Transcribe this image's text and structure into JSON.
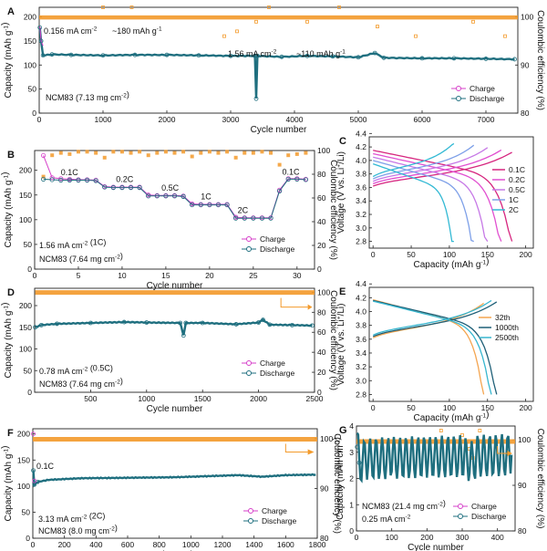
{
  "colors": {
    "charge": "#d63fc9",
    "discharge": "#1f6f7f",
    "ce": "#f39a2b",
    "c01": "#d6267f",
    "c02": "#e14fd0",
    "c05": "#c678e6",
    "c1": "#7ea0e8",
    "c2": "#33b9d4",
    "n32": "#f4a550",
    "n1000": "#1e5f77",
    "n2500": "#37b6cf"
  },
  "chart_data": [
    {
      "id": "A",
      "type": "scatter",
      "xlabel": "Cycle number",
      "ylabel": "Capacity (mAh g-1)",
      "y2label": "Coulombic efficiency (%)",
      "xlim": [
        0,
        7500
      ],
      "ylim": [
        0,
        220
      ],
      "y2lim": [
        80,
        102
      ],
      "xticks": [
        0,
        1000,
        2000,
        3000,
        4000,
        5000,
        6000,
        7000
      ],
      "yticks": [
        0,
        50,
        100,
        150,
        200
      ],
      "y2ticks": [
        80,
        90,
        100
      ],
      "series": [
        {
          "name": "Charge",
          "points": [
            [
              10,
              180
            ],
            [
              30,
              150
            ],
            [
              60,
              140
            ],
            [
              200,
              122
            ],
            [
              500,
              121
            ],
            [
              1000,
              120
            ],
            [
              1500,
              121
            ],
            [
              2000,
              121
            ],
            [
              2500,
              120
            ],
            [
              3000,
              119
            ],
            [
              3400,
              119
            ],
            [
              3800,
              117
            ],
            [
              4200,
              119
            ],
            [
              4600,
              118
            ],
            [
              5000,
              116
            ],
            [
              5260,
              125
            ],
            [
              5400,
              115
            ],
            [
              6000,
              114
            ],
            [
              6500,
              114
            ],
            [
              7000,
              113
            ],
            [
              7450,
              112
            ]
          ]
        },
        {
          "name": "Discharge",
          "points": [
            [
              10,
              178
            ],
            [
              30,
              150
            ],
            [
              60,
              120
            ],
            [
              200,
              122
            ],
            [
              500,
              121
            ],
            [
              1000,
              120
            ],
            [
              1500,
              121
            ],
            [
              2000,
              121
            ],
            [
              2500,
              120
            ],
            [
              3000,
              119
            ],
            [
              3380,
              119
            ],
            [
              3400,
              30
            ],
            [
              3420,
              119
            ],
            [
              3800,
              117
            ],
            [
              4200,
              119
            ],
            [
              4600,
              118
            ],
            [
              5000,
              116
            ],
            [
              5260,
              125
            ],
            [
              5400,
              115
            ],
            [
              6000,
              114
            ],
            [
              6500,
              114
            ],
            [
              7000,
              113
            ],
            [
              7450,
              112
            ]
          ]
        }
      ],
      "ce": {
        "level": 99.9,
        "outliers": [
          [
            1000,
            102
          ],
          [
            1450,
            102
          ],
          [
            2900,
            96
          ],
          [
            3100,
            97
          ],
          [
            3400,
            99
          ],
          [
            3600,
            102
          ],
          [
            4200,
            99
          ],
          [
            4700,
            102
          ],
          [
            5300,
            98
          ],
          [
            5900,
            96
          ],
          [
            6800,
            99
          ],
          [
            7300,
            96
          ]
        ]
      },
      "annotations": [
        "0.156 mA cm-2",
        "~180 mAh g-1",
        "1.56 mA cm-2",
        "~110 mAh g-1",
        "NCM83 (7.13 mg cm-2)"
      ],
      "legend": [
        "Charge",
        "Discharge"
      ]
    },
    {
      "id": "B",
      "type": "scatter",
      "xlabel": "Cycle number",
      "ylabel": "Capacity (mAh g-1)",
      "y2label": "Coulombic efficiency (%)",
      "xlim": [
        0,
        32
      ],
      "ylim": [
        0,
        240
      ],
      "y2lim": [
        0,
        100
      ],
      "xticks": [
        0,
        5,
        10,
        15,
        20,
        25,
        30
      ],
      "yticks": [
        0,
        50,
        100,
        150,
        200
      ],
      "y2ticks": [
        0,
        20,
        40,
        60,
        80,
        100
      ],
      "charge": [
        230,
        185,
        183,
        182,
        181,
        181,
        180,
        167,
        166,
        166,
        166,
        166,
        150,
        149,
        149,
        149,
        148,
        132,
        131,
        131,
        131,
        131,
        105,
        104,
        104,
        104,
        104,
        160,
        183,
        183,
        182
      ],
      "discharge": [
        182,
        181,
        180,
        180,
        180,
        180,
        179,
        166,
        165,
        165,
        165,
        165,
        148,
        148,
        148,
        148,
        147,
        130,
        130,
        130,
        130,
        130,
        103,
        103,
        103,
        103,
        103,
        158,
        182,
        182,
        181
      ],
      "ce": [
        78,
        96,
        98,
        97,
        99,
        99,
        98,
        94,
        99,
        99,
        98,
        99,
        96,
        98,
        99,
        98,
        99,
        95,
        98,
        99,
        98,
        99,
        94,
        98,
        98,
        99,
        98,
        88,
        96,
        97,
        98
      ],
      "rate_labels": [
        "0.1C",
        "0.2C",
        "0.5C",
        "1C",
        "2C",
        "0.1C"
      ],
      "annotations": [
        "1.56 mA cm-2 (1C)",
        "NCM83 (7.64 mg cm-2)"
      ],
      "legend": [
        "Charge",
        "Discharge"
      ]
    },
    {
      "id": "C",
      "type": "line",
      "xlabel": "Capacity (mAh g-1)",
      "ylabel": "Voltage (V vs. Li+/Li)",
      "xlim": [
        -5,
        210
      ],
      "ylim": [
        2.7,
        4.35
      ],
      "xticks": [
        0,
        50,
        100,
        150,
        200
      ],
      "yticks": [
        2.8,
        3.0,
        3.2,
        3.4,
        3.6,
        3.8,
        4.0,
        4.2,
        4.4
      ],
      "series": [
        {
          "name": "0.1C",
          "cap": 182
        },
        {
          "name": "0.2C",
          "cap": 168
        },
        {
          "name": "0.5C",
          "cap": 150
        },
        {
          "name": "1C",
          "cap": 132
        },
        {
          "name": "2C",
          "cap": 106
        }
      ]
    },
    {
      "id": "D",
      "type": "scatter",
      "xlabel": "Cycle number",
      "ylabel": "Capacity (mAh g-1)",
      "y2label": "Coulombic efficiency (%)",
      "xlim": [
        0,
        2500
      ],
      "ylim": [
        0,
        240
      ],
      "y2lim": [
        0,
        104
      ],
      "xticks": [
        500,
        1000,
        1500,
        2000,
        2500
      ],
      "yticks": [
        0,
        50,
        100,
        150,
        200
      ],
      "y2ticks": [
        0,
        20,
        40,
        60,
        80,
        100
      ],
      "series": [
        {
          "name": "Charge",
          "points": [
            [
              5,
              150
            ],
            [
              60,
              155
            ],
            [
              200,
              158
            ],
            [
              500,
              160
            ],
            [
              800,
              162
            ],
            [
              1000,
              161
            ],
            [
              1300,
              160
            ],
            [
              1500,
              160
            ],
            [
              1800,
              157
            ],
            [
              2000,
              161
            ],
            [
              2040,
              167
            ],
            [
              2100,
              156
            ],
            [
              2300,
              155
            ],
            [
              2480,
              154
            ]
          ]
        },
        {
          "name": "Discharge",
          "points": [
            [
              5,
              150
            ],
            [
              60,
              155
            ],
            [
              200,
              158
            ],
            [
              500,
              160
            ],
            [
              800,
              162
            ],
            [
              1000,
              161
            ],
            [
              1300,
              160
            ],
            [
              1330,
              131
            ],
            [
              1350,
              160
            ],
            [
              1500,
              160
            ],
            [
              1800,
              157
            ],
            [
              2000,
              161
            ],
            [
              2040,
              167
            ],
            [
              2100,
              156
            ],
            [
              2300,
              155
            ],
            [
              2480,
              154
            ]
          ]
        }
      ],
      "ce_level": 99.8,
      "annotations": [
        "0.78 mA cm-2 (0.5C)",
        "NCM83 (7.64 mg cm-2)"
      ],
      "legend": [
        "Charge",
        "Discharge"
      ]
    },
    {
      "id": "E",
      "type": "line",
      "xlabel": "Capacity (mAh g-1)",
      "ylabel": "Voltage (V vs. Li+/Li)",
      "xlim": [
        -5,
        210
      ],
      "ylim": [
        2.7,
        4.35
      ],
      "xticks": [
        0,
        50,
        100,
        150,
        200
      ],
      "yticks": [
        2.8,
        3.0,
        3.2,
        3.4,
        3.6,
        3.8,
        4.0,
        4.2,
        4.4
      ],
      "series": [
        {
          "name": "32th",
          "cap": 145
        },
        {
          "name": "1000th",
          "cap": 162
        },
        {
          "name": "2500th",
          "cap": 155
        }
      ]
    },
    {
      "id": "F",
      "type": "scatter",
      "xlabel": "Cycle number",
      "ylabel": "Capacity (mAh g-1)",
      "y2label": "Coulombic efficiency (%)",
      "xlim": [
        0,
        1800
      ],
      "ylim": [
        0,
        210
      ],
      "y2lim": [
        80,
        102
      ],
      "xticks": [
        0,
        200,
        400,
        600,
        800,
        1000,
        1200,
        1400,
        1600,
        1800
      ],
      "yticks": [
        0,
        50,
        100,
        150,
        200
      ],
      "y2ticks": [
        80,
        90,
        100
      ],
      "series": [
        {
          "name": "Charge",
          "points": [
            [
              3,
              200
            ],
            [
              10,
              110
            ],
            [
              30,
              108
            ],
            [
              100,
              112
            ],
            [
              300,
              115
            ],
            [
              600,
              116
            ],
            [
              900,
              117
            ],
            [
              1200,
              120
            ],
            [
              1300,
              121
            ],
            [
              1450,
              118
            ],
            [
              1600,
              121
            ],
            [
              1790,
              122
            ]
          ]
        },
        {
          "name": "Discharge",
          "points": [
            [
              3,
              130
            ],
            [
              10,
              103
            ],
            [
              30,
              108
            ],
            [
              100,
              112
            ],
            [
              300,
              115
            ],
            [
              600,
              116
            ],
            [
              900,
              117
            ],
            [
              1200,
              120
            ],
            [
              1300,
              121
            ],
            [
              1450,
              118
            ],
            [
              1600,
              121
            ],
            [
              1790,
              122
            ]
          ]
        }
      ],
      "ce_level": 99.9,
      "annotations": [
        "0.1C",
        "3.13 mA cm-2 (2C)",
        "NCM83 (8.0 mg cm-2)"
      ],
      "legend": [
        "Charge",
        "Discharge"
      ]
    },
    {
      "id": "G",
      "type": "scatter",
      "xlabel": "Cycle number",
      "ylabel": "Capacity (mAh cm-2)",
      "y2label": "Coulombic efficiency (%)",
      "xlim": [
        0,
        450
      ],
      "ylim": [
        0,
        4
      ],
      "y2lim": [
        80,
        103
      ],
      "xticks": [
        0,
        100,
        200,
        300,
        400
      ],
      "yticks": [
        0,
        1,
        2,
        3,
        4
      ],
      "y2ticks": [
        80,
        90,
        100
      ],
      "series": [
        {
          "name": "Charge",
          "points": [
            [
              2,
              3.3
            ],
            [
              8,
              2.7
            ],
            [
              30,
              2.75
            ],
            [
              100,
              2.78
            ],
            [
              200,
              2.82
            ],
            [
              300,
              2.85
            ],
            [
              330,
              2.6
            ],
            [
              340,
              2.86
            ],
            [
              440,
              2.9
            ]
          ]
        },
        {
          "name": "Discharge",
          "points": [
            [
              2,
              3.2
            ],
            [
              8,
              2.6
            ],
            [
              30,
              2.75
            ],
            [
              100,
              2.78
            ],
            [
              200,
              2.82
            ],
            [
              300,
              2.85
            ],
            [
              330,
              2.6
            ],
            [
              340,
              2.86
            ],
            [
              440,
              2.9
            ]
          ]
        }
      ],
      "ce_level": 99.6,
      "annotations": [
        "NCM83 (21.4 mg cm-2)",
        "0.25 mA cm-2"
      ],
      "legend": [
        "Charge",
        "Discharge"
      ]
    }
  ]
}
